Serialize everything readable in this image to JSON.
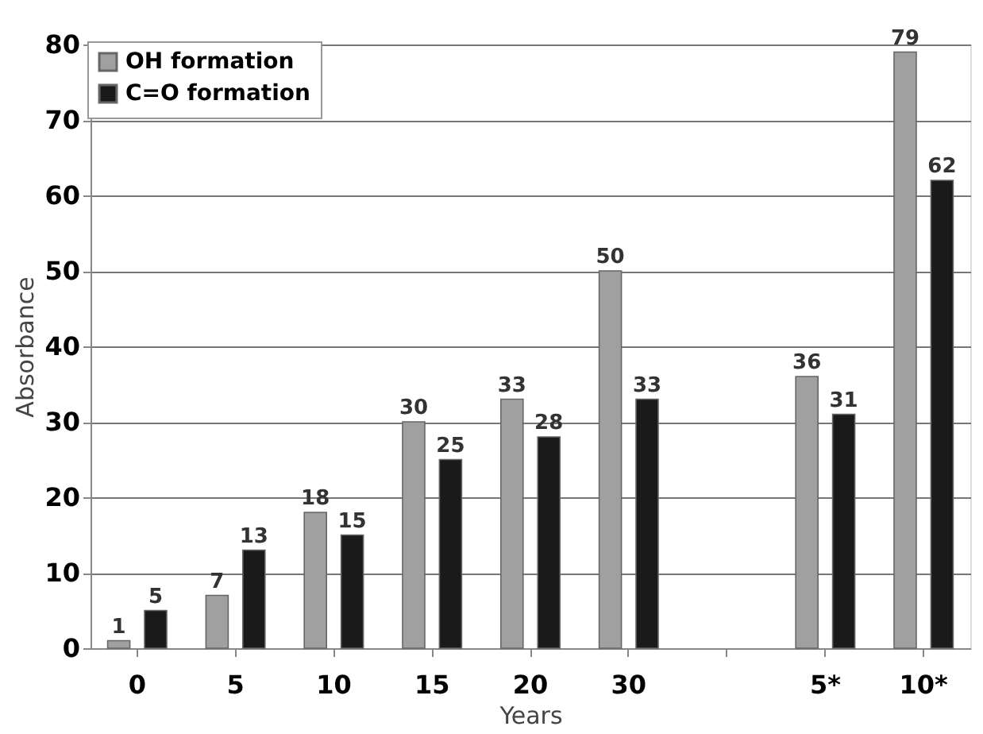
{
  "chart_data": {
    "type": "bar",
    "xlabel": "Years",
    "ylabel": "Absorbance",
    "categories": [
      "0",
      "5",
      "10",
      "15",
      "20",
      "30",
      null,
      "5*",
      "10*"
    ],
    "series": [
      {
        "name": "OH formation",
        "color": "#a0a0a0",
        "values": [
          1,
          7,
          18,
          30,
          33,
          50,
          null,
          36,
          79
        ]
      },
      {
        "name": "C=O formation",
        "color": "#1a1a1a",
        "values": [
          5,
          13,
          15,
          25,
          28,
          33,
          null,
          31,
          62
        ]
      }
    ],
    "ylim": [
      0,
      80
    ],
    "yticks": [
      0,
      10,
      20,
      30,
      40,
      50,
      60,
      70,
      80
    ],
    "grid": "y",
    "legend": "top left",
    "data_labels": true
  }
}
